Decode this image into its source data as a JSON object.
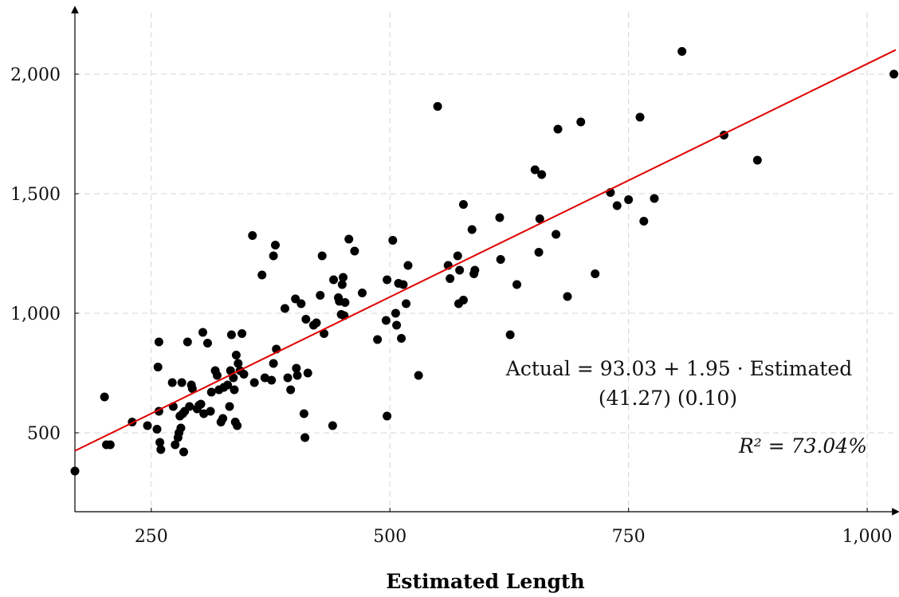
{
  "chart_data": {
    "type": "scatter",
    "title": "",
    "xlabel": "Estimated Length",
    "ylabel": "",
    "xlim": [
      170,
      1030
    ],
    "ylim": [
      170,
      2270
    ],
    "x_ticks": [
      250,
      500,
      750,
      1000
    ],
    "x_tick_labels": [
      "250",
      "500",
      "750",
      "1,000"
    ],
    "y_ticks": [
      500,
      1000,
      1500,
      2000
    ],
    "y_tick_labels": [
      "500",
      "1,000",
      "1,500",
      "2,000"
    ],
    "grid": true,
    "colors": {
      "points": "#000000",
      "fit_line": "#e00000",
      "grid": "#d4d4d4",
      "axis": "#000000"
    },
    "points": [
      [
        170,
        340
      ],
      [
        201,
        650
      ],
      [
        203,
        450
      ],
      [
        207,
        450
      ],
      [
        230,
        545
      ],
      [
        246,
        530
      ],
      [
        256,
        515
      ],
      [
        257,
        775
      ],
      [
        258,
        590
      ],
      [
        258,
        880
      ],
      [
        259,
        460
      ],
      [
        260,
        430
      ],
      [
        272,
        710
      ],
      [
        273,
        610
      ],
      [
        275,
        450
      ],
      [
        278,
        480
      ],
      [
        279,
        500
      ],
      [
        280,
        570
      ],
      [
        281,
        520
      ],
      [
        282,
        710
      ],
      [
        283,
        580
      ],
      [
        284,
        420
      ],
      [
        285,
        590
      ],
      [
        288,
        880
      ],
      [
        290,
        610
      ],
      [
        292,
        700
      ],
      [
        293,
        685
      ],
      [
        298,
        600
      ],
      [
        300,
        615
      ],
      [
        302,
        620
      ],
      [
        304,
        920
      ],
      [
        305,
        580
      ],
      [
        309,
        875
      ],
      [
        312,
        590
      ],
      [
        313,
        670
      ],
      [
        317,
        760
      ],
      [
        319,
        740
      ],
      [
        321,
        680
      ],
      [
        323,
        545
      ],
      [
        325,
        560
      ],
      [
        326,
        690
      ],
      [
        330,
        700
      ],
      [
        332,
        610
      ],
      [
        333,
        760
      ],
      [
        334,
        910
      ],
      [
        336,
        730
      ],
      [
        337,
        680
      ],
      [
        338,
        545
      ],
      [
        339,
        825
      ],
      [
        340,
        530
      ],
      [
        341,
        790
      ],
      [
        343,
        760
      ],
      [
        345,
        915
      ],
      [
        347,
        745
      ],
      [
        356,
        1325
      ],
      [
        358,
        710
      ],
      [
        366,
        1160
      ],
      [
        369,
        730
      ],
      [
        376,
        720
      ],
      [
        378,
        790
      ],
      [
        378,
        1240
      ],
      [
        380,
        1285
      ],
      [
        381,
        850
      ],
      [
        390,
        1020
      ],
      [
        393,
        730
      ],
      [
        396,
        680
      ],
      [
        401,
        1060
      ],
      [
        402,
        770
      ],
      [
        403,
        740
      ],
      [
        407,
        1040
      ],
      [
        410,
        580
      ],
      [
        411,
        480
      ],
      [
        412,
        975
      ],
      [
        414,
        750
      ],
      [
        420,
        950
      ],
      [
        423,
        960
      ],
      [
        427,
        1075
      ],
      [
        429,
        1240
      ],
      [
        431,
        915
      ],
      [
        440,
        530
      ],
      [
        441,
        1140
      ],
      [
        446,
        1065
      ],
      [
        447,
        1050
      ],
      [
        449,
        995
      ],
      [
        450,
        1120
      ],
      [
        451,
        1150
      ],
      [
        452,
        990
      ],
      [
        453,
        1045
      ],
      [
        457,
        1310
      ],
      [
        463,
        1260
      ],
      [
        471,
        1085
      ],
      [
        487,
        890
      ],
      [
        496,
        970
      ],
      [
        497,
        570
      ],
      [
        497,
        1140
      ],
      [
        503,
        1305
      ],
      [
        506,
        1000
      ],
      [
        507,
        950
      ],
      [
        509,
        1125
      ],
      [
        512,
        895
      ],
      [
        514,
        1120
      ],
      [
        517,
        1040
      ],
      [
        519,
        1200
      ],
      [
        530,
        740
      ],
      [
        550,
        1865
      ],
      [
        561,
        1200
      ],
      [
        563,
        1145
      ],
      [
        571,
        1240
      ],
      [
        572,
        1040
      ],
      [
        573,
        1180
      ],
      [
        577,
        1055
      ],
      [
        577,
        1455
      ],
      [
        586,
        1350
      ],
      [
        588,
        1165
      ],
      [
        589,
        1180
      ],
      [
        615,
        1400
      ],
      [
        616,
        1225
      ],
      [
        626,
        910
      ],
      [
        633,
        1120
      ],
      [
        652,
        1600
      ],
      [
        656,
        1255
      ],
      [
        657,
        1395
      ],
      [
        659,
        1580
      ],
      [
        674,
        1330
      ],
      [
        676,
        1770
      ],
      [
        686,
        1070
      ],
      [
        700,
        1800
      ],
      [
        715,
        1165
      ],
      [
        731,
        1505
      ],
      [
        738,
        1450
      ],
      [
        750,
        1475
      ],
      [
        762,
        1820
      ],
      [
        766,
        1385
      ],
      [
        777,
        1480
      ],
      [
        806,
        2095
      ],
      [
        850,
        1745
      ],
      [
        885,
        1640
      ],
      [
        1028,
        2000
      ]
    ],
    "fit_line": {
      "intercept": 93.03,
      "slope": 1.95,
      "x_range": [
        170,
        1030
      ]
    },
    "annotations": {
      "equation": "Actual = 93.03 + 1.95 · Estimated",
      "std_errors": "(41.27)  (0.10)",
      "r_squared": "R² = 73.04%"
    }
  }
}
